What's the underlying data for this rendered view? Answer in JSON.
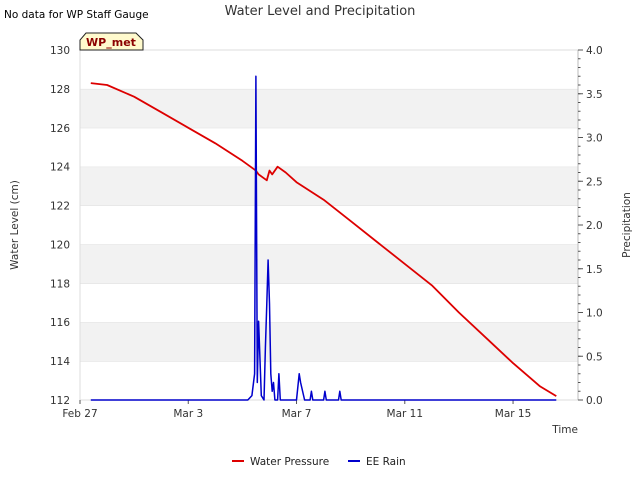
{
  "note": "No data for WP Staff Gauge",
  "site_label": "WP_met",
  "chart_data": {
    "type": "line",
    "title": "Water Level and Precipitation",
    "xlabel": "Time",
    "ylabel_left": "Water Level (cm)",
    "ylabel_right": "Precipitation",
    "x_ticks": [
      "Feb 27",
      "Mar 3",
      "Mar 7",
      "Mar 11",
      "Mar 15"
    ],
    "x_tick_days": [
      0,
      4,
      8,
      12,
      16
    ],
    "x_range_days": [
      0,
      18.4
    ],
    "ylim_left": [
      112,
      130
    ],
    "y_ticks_left": [
      "112",
      "114",
      "116",
      "118",
      "120",
      "122",
      "124",
      "126",
      "128",
      "130"
    ],
    "ylim_right": [
      0,
      4
    ],
    "y_ticks_right": [
      "0.0",
      "0.5",
      "1.0",
      "1.5",
      "2.0",
      "2.5",
      "3.0",
      "3.5",
      "4.0"
    ],
    "grid": "horizontal alternating bands",
    "legend_position": "bottom",
    "series": [
      {
        "name": "Water Pressure",
        "axis": "left",
        "color": "#dd0000",
        "x": [
          0.4,
          1.0,
          2.0,
          3.0,
          4.0,
          5.0,
          6.0,
          6.5,
          6.6,
          6.8,
          6.9,
          7.0,
          7.1,
          7.3,
          7.6,
          8.0,
          9.0,
          10.0,
          11.0,
          12.0,
          13.0,
          14.0,
          15.0,
          16.0,
          17.0,
          17.6
        ],
        "y": [
          128.3,
          128.2,
          127.6,
          126.8,
          126.0,
          125.2,
          124.3,
          123.8,
          123.6,
          123.4,
          123.3,
          123.8,
          123.6,
          124.0,
          123.7,
          123.2,
          122.3,
          121.2,
          120.1,
          119.0,
          117.9,
          116.5,
          115.2,
          113.9,
          112.7,
          112.2
        ]
      },
      {
        "name": "EE Rain",
        "axis": "right",
        "color": "#0000cc",
        "x": [
          0.4,
          6.2,
          6.35,
          6.45,
          6.5,
          6.55,
          6.6,
          6.7,
          6.8,
          6.85,
          6.9,
          6.95,
          7.0,
          7.05,
          7.1,
          7.15,
          7.2,
          7.3,
          7.35,
          7.4,
          7.45,
          7.5,
          8.0,
          8.1,
          8.15,
          8.3,
          8.5,
          8.55,
          8.6,
          9.0,
          9.05,
          9.1,
          9.55,
          9.6,
          9.65,
          17.6
        ],
        "y": [
          0,
          0,
          0.05,
          0.3,
          3.7,
          0.2,
          0.9,
          0.05,
          0,
          0.6,
          1.1,
          1.6,
          1.1,
          0.3,
          0.1,
          0.2,
          0,
          0,
          0.3,
          0,
          0,
          0,
          0,
          0.3,
          0.2,
          0,
          0,
          0.1,
          0,
          0,
          0.1,
          0,
          0,
          0.1,
          0,
          0
        ]
      }
    ]
  }
}
